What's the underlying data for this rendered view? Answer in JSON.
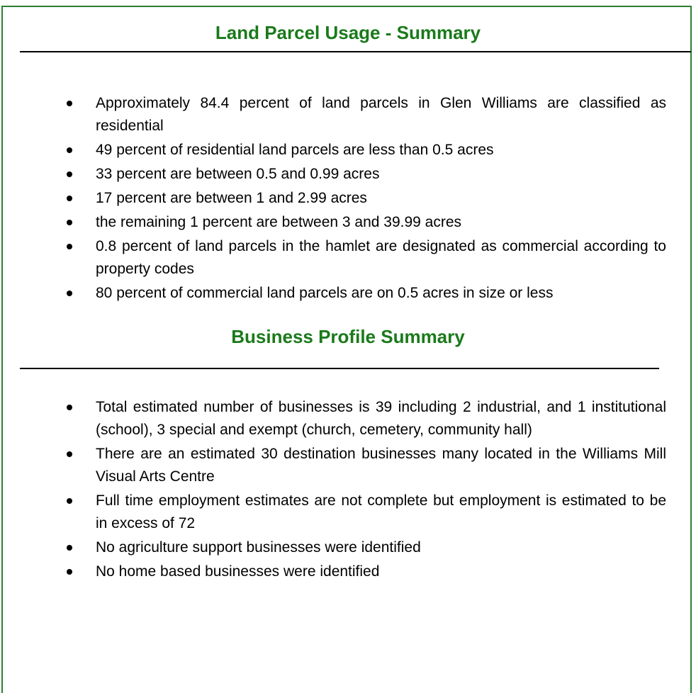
{
  "sections": [
    {
      "title": "Land Parcel Usage - Summary",
      "items": [
        "Approximately 84.4 percent of land parcels in Glen Williams are classified as residential",
        "49 percent of residential land parcels are less than 0.5 acres",
        "33 percent are between 0.5 and 0.99 acres",
        "17 percent are between 1 and 2.99 acres",
        "the remaining 1 percent are between 3 and 39.99 acres",
        "0.8 percent of land parcels in the hamlet are designated as commercial according to property codes",
        "80 percent of commercial land parcels are on 0.5 acres in size or less"
      ]
    },
    {
      "title": "Business Profile Summary",
      "items": [
        "Total estimated number of businesses is 39 including 2 industrial, and 1 institutional (school), 3 special and exempt (church, cemetery, community hall)",
        "There are an estimated 30 destination businesses many located in the Williams Mill Visual Arts Centre",
        "Full time employment estimates are not complete but employment is estimated to be in excess of 72",
        "No agriculture support businesses were identified",
        "No home based businesses were identified"
      ]
    }
  ]
}
